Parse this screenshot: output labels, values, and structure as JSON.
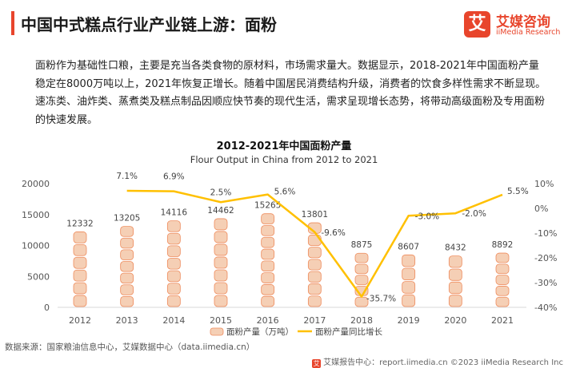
{
  "header": {
    "title": "中国中式糕点行业产业链上游：面粉"
  },
  "logo": {
    "mark": "艾",
    "cn": "艾媒咨询",
    "en": "iiMedia Research"
  },
  "description": "面粉作为基础性口粮，主要是充当各类食物的原材料，市场需求量大。数据显示，2018-2021年中国面粉产量稳定在8000万吨以上，2021年恢复正增长。随着中国居民消费结构升级，消费者的饮食多样性需求不断显现。速冻类、油炸类、蒸煮类及糕点制品因顺应快节奏的现代生活，需求呈现增长态势，将带动高级面粉及专用面粉的快速发展。",
  "chart_data": {
    "type": "bar",
    "title": "2012-2021年中国面粉产量",
    "subtitle": "Flour Output in China from 2012 to 2021",
    "categories": [
      "2012",
      "2013",
      "2014",
      "2015",
      "2016",
      "2017",
      "2018",
      "2019",
      "2020",
      "2021"
    ],
    "series": [
      {
        "name": "面粉产量（万吨）",
        "type": "bar",
        "axis": "left",
        "values": [
          12332,
          13205,
          14116,
          14462,
          15265,
          13801,
          8875,
          8607,
          8432,
          8892
        ],
        "labels": [
          "12332",
          "13205",
          "14116",
          "14462",
          "15265",
          "13801",
          "8875",
          "8607",
          "8432",
          "8892"
        ]
      },
      {
        "name": "面粉产量同比增长",
        "type": "line",
        "axis": "right",
        "values": [
          null,
          7.1,
          6.9,
          2.5,
          5.6,
          -9.6,
          -35.7,
          -3.0,
          -2.0,
          5.5
        ],
        "labels": [
          "",
          "7.1%",
          "6.9%",
          "2.5%",
          "5.6%",
          "-9.6%",
          "-35.7%",
          "-3.0%",
          "-2.0%",
          "5.5%"
        ]
      }
    ],
    "left_axis": {
      "ylim": [
        0,
        20000
      ],
      "ticks": [
        0,
        5000,
        10000,
        15000,
        20000
      ],
      "tick_labels": [
        "0",
        "5000",
        "10000",
        "15000",
        "20000"
      ]
    },
    "right_axis": {
      "ylim": [
        -40,
        10
      ],
      "ticks": [
        -40,
        -30,
        -20,
        -10,
        0,
        10
      ],
      "tick_labels": [
        "-40%",
        "-30%",
        "-20%",
        "-10%",
        "0%",
        "10%"
      ]
    },
    "legend": {
      "position": "bottom",
      "entries": [
        "面粉产量（万吨）",
        "面粉产量同比增长"
      ]
    },
    "colors": {
      "bar": "#f5cfb5",
      "bar_stroke": "#ee8b5c",
      "line": "#ffc000",
      "axis_text": "#555555"
    }
  },
  "source": "数据来源：国家粮油信息中心，艾媒数据中心（data.iimedia.cn）",
  "footer": {
    "mark": "艾",
    "text": "艾媒报告中心：report.iimedia.cn ©2023 iiMedia Research Inc"
  }
}
